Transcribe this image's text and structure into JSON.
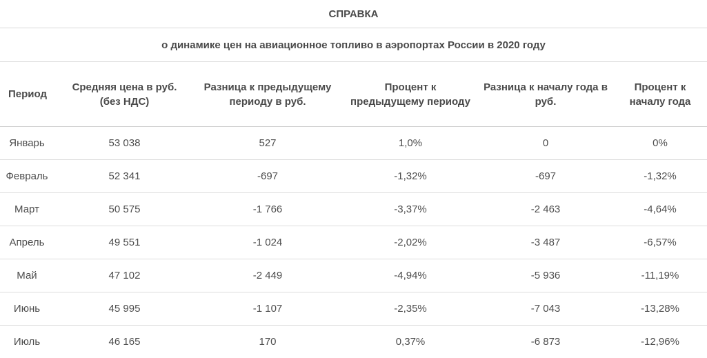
{
  "document": {
    "title": "СПРАВКА",
    "subtitle": "о динамике цен на авиационное топливо в аэропортах России в 2020 году"
  },
  "table": {
    "headers": [
      "Период",
      "Средняя цена в руб. (без НДС)",
      "Разница к предыдущему периоду в руб.",
      "Процент к предыдущему периоду",
      "Разница к началу года в руб.",
      "Процент к началу года"
    ],
    "rows": [
      [
        "Январь",
        "53 038",
        "527",
        "1,0%",
        "0",
        "0%"
      ],
      [
        "Февраль",
        "52 341",
        "-697",
        "-1,32%",
        "-697",
        "-1,32%"
      ],
      [
        "Март",
        "50 575",
        "-1 766",
        "-3,37%",
        "-2 463",
        "-4,64%"
      ],
      [
        "Апрель",
        "49 551",
        "-1 024",
        "-2,02%",
        "-3 487",
        "-6,57%"
      ],
      [
        "Май",
        "47 102",
        "-2 449",
        "-4,94%",
        "-5 936",
        "-11,19%"
      ],
      [
        "Июнь",
        "45 995",
        "-1 107",
        "-2,35%",
        "-7 043",
        "-13,28%"
      ],
      [
        "Июль",
        "46 165",
        "170",
        "0,37%",
        "-6 873",
        "-12,96%"
      ]
    ]
  }
}
